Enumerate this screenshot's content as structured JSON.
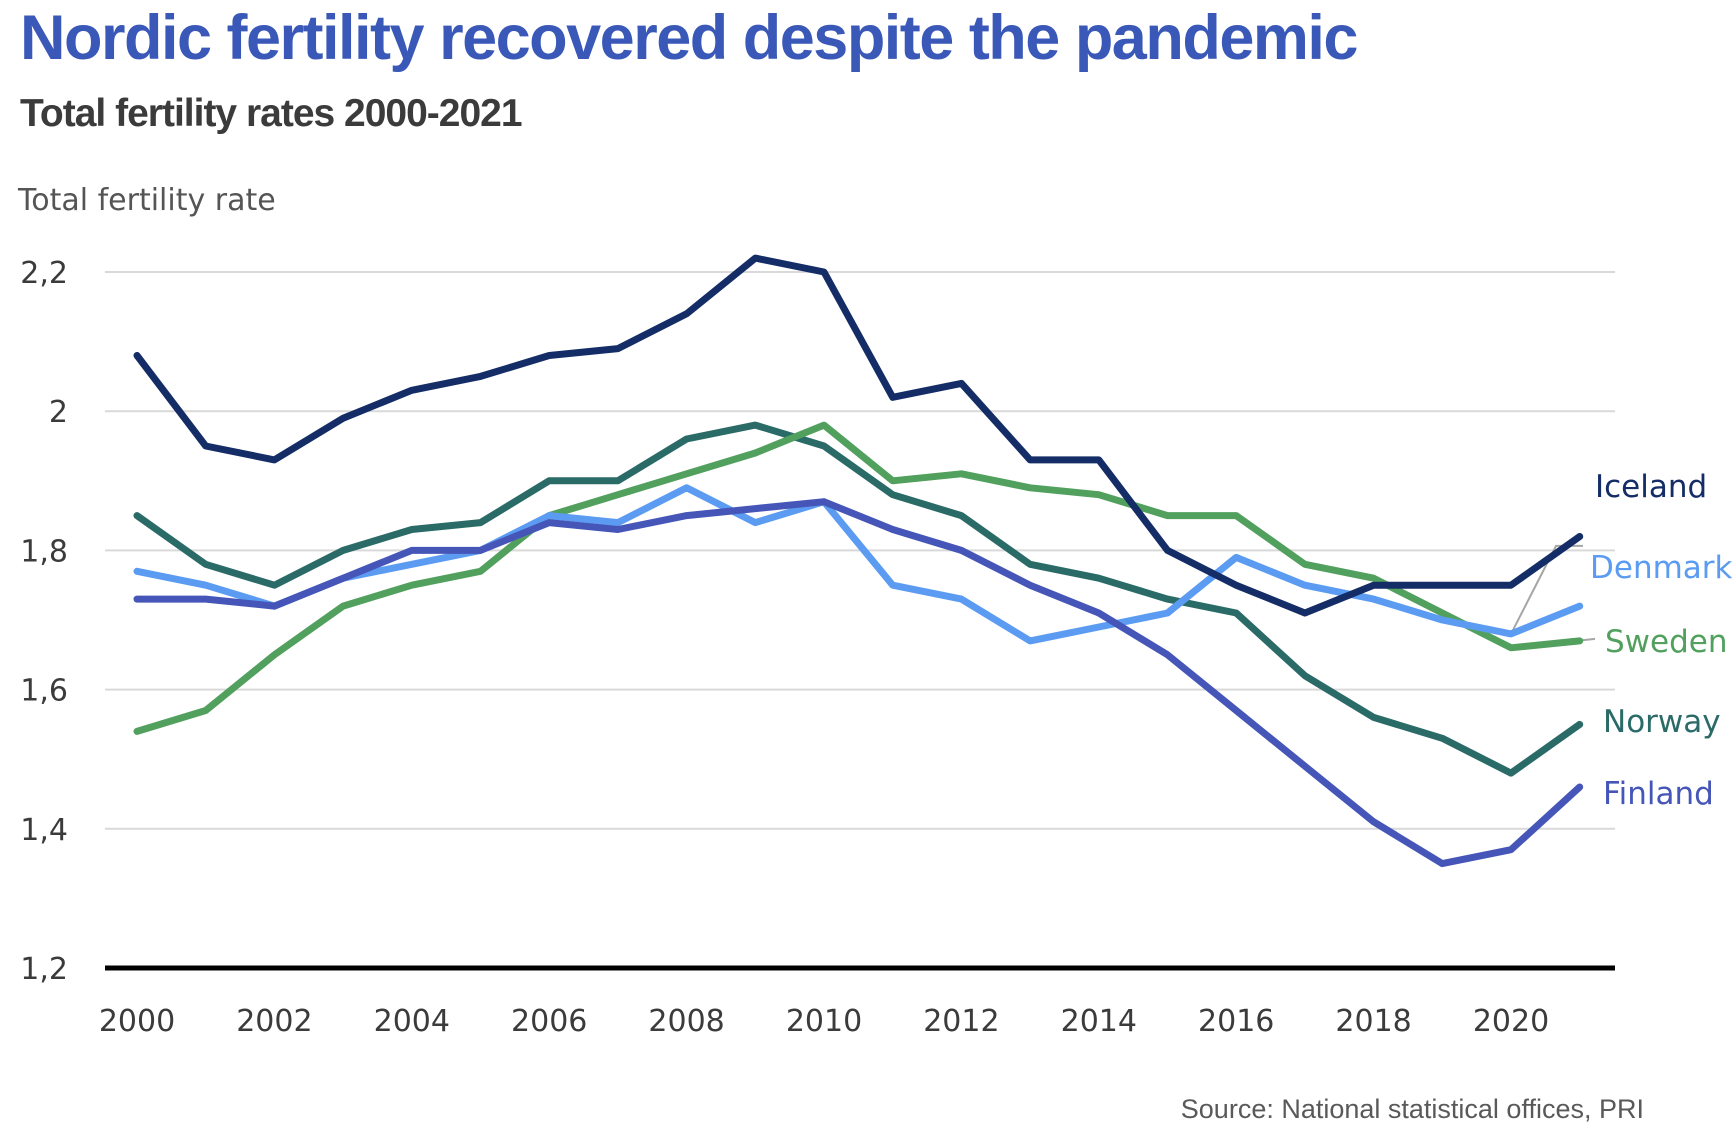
{
  "title": "Nordic fertility recovered despite the pandemic",
  "subtitle": "Total fertility rates 2000-2021",
  "source": "Source: National statistical offices, PRI",
  "chart_data": {
    "type": "line",
    "title": "Nordic fertility recovered despite the pandemic",
    "subtitle": "Total fertility rates 2000-2021",
    "ylabel": "Total fertility rate",
    "xlabel": "",
    "ylim": [
      1.2,
      2.2
    ],
    "yticks": [
      1.2,
      1.4,
      1.6,
      1.8,
      2.0,
      2.2
    ],
    "ytick_labels": [
      "1,2",
      "1,4",
      "1,6",
      "1,8",
      "2",
      "2,2"
    ],
    "xticks": [
      2000,
      2002,
      2004,
      2006,
      2008,
      2010,
      2012,
      2014,
      2016,
      2018,
      2020
    ],
    "xtick_labels": [
      "2000",
      "2002",
      "2004",
      "2006",
      "2008",
      "2010",
      "2012",
      "2014",
      "2016",
      "2018",
      "2020"
    ],
    "x": [
      2000,
      2001,
      2002,
      2003,
      2004,
      2005,
      2006,
      2007,
      2008,
      2009,
      2010,
      2011,
      2012,
      2013,
      2014,
      2015,
      2016,
      2017,
      2018,
      2019,
      2020,
      2021
    ],
    "grid": true,
    "legend": "direct labels at right end of lines",
    "series": [
      {
        "name": "Norway",
        "color": "#2a6b67",
        "values": [
          1.85,
          1.78,
          1.75,
          1.8,
          1.83,
          1.84,
          1.9,
          1.9,
          1.96,
          1.98,
          1.95,
          1.88,
          1.85,
          1.78,
          1.76,
          1.73,
          1.71,
          1.62,
          1.56,
          1.53,
          1.48,
          1.55
        ]
      },
      {
        "name": "Sweden",
        "color": "#52a05e",
        "values": [
          1.54,
          1.57,
          1.65,
          1.72,
          1.75,
          1.77,
          1.85,
          1.88,
          1.91,
          1.94,
          1.98,
          1.9,
          1.91,
          1.89,
          1.88,
          1.85,
          1.85,
          1.78,
          1.76,
          1.71,
          1.66,
          1.67
        ]
      },
      {
        "name": "Denmark",
        "color": "#5b9cf2",
        "values": [
          1.77,
          1.75,
          1.72,
          1.76,
          1.78,
          1.8,
          1.85,
          1.84,
          1.89,
          1.84,
          1.87,
          1.75,
          1.73,
          1.67,
          1.69,
          1.71,
          1.79,
          1.75,
          1.73,
          1.7,
          1.68,
          1.72
        ]
      },
      {
        "name": "Finland",
        "color": "#4556b8",
        "values": [
          1.73,
          1.73,
          1.72,
          1.76,
          1.8,
          1.8,
          1.84,
          1.83,
          1.85,
          1.86,
          1.87,
          1.83,
          1.8,
          1.75,
          1.71,
          1.65,
          1.57,
          1.49,
          1.41,
          1.35,
          1.37,
          1.46
        ]
      },
      {
        "name": "Iceland",
        "color": "#142d66",
        "values": [
          2.08,
          1.95,
          1.93,
          1.99,
          2.03,
          2.05,
          2.08,
          2.09,
          2.14,
          2.22,
          2.2,
          2.02,
          2.04,
          1.93,
          1.93,
          1.8,
          1.75,
          1.71,
          1.75,
          1.75,
          1.75,
          1.82
        ]
      }
    ]
  }
}
